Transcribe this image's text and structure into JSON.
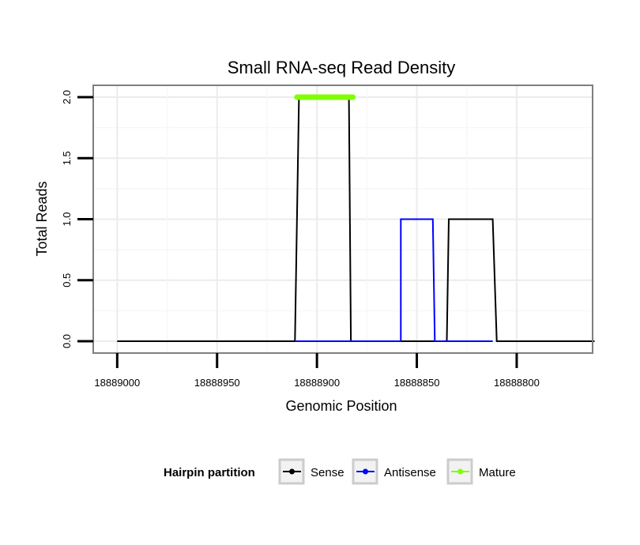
{
  "chart_data": {
    "type": "line",
    "title": "Small RNA-seq Read Density",
    "xlabel": "Genomic Position",
    "ylabel": "Total Reads",
    "x_reversed": true,
    "xlim": [
      18889012,
      18888762
    ],
    "ylim": [
      0,
      2
    ],
    "x_ticks": [
      18889000,
      18888950,
      18888900,
      18888850,
      18888800
    ],
    "x_tick_labels": [
      "18889000",
      "18888950",
      "18888900",
      "18888850",
      "18888800"
    ],
    "y_ticks": [
      0,
      0.5,
      1,
      1.5,
      2
    ],
    "y_tick_labels": [
      "0.0",
      "0.5",
      "1.0",
      "1.5",
      "2.0"
    ],
    "grid": true,
    "legend_position": "bottom",
    "legend_title": "Hairpin partition",
    "series": [
      {
        "name": "Sense",
        "color": "#000000",
        "x": [
          18889000,
          18888911,
          18888909,
          18888884,
          18888883,
          18888835,
          18888834,
          18888812,
          18888810,
          18888761
        ],
        "y": [
          0,
          0,
          2,
          2,
          0,
          0,
          1,
          1,
          0,
          0
        ]
      },
      {
        "name": "Antisense",
        "color": "#0000ff",
        "x": [
          18888911,
          18888883,
          18888858,
          18888858,
          18888842,
          18888841,
          18888834,
          18888812
        ],
        "y": [
          0,
          0,
          0,
          1,
          1,
          0,
          0,
          0
        ]
      },
      {
        "name": "Mature",
        "color": "#7fff00",
        "x": [
          18888910,
          18888882
        ],
        "y": [
          2,
          2
        ]
      }
    ]
  }
}
